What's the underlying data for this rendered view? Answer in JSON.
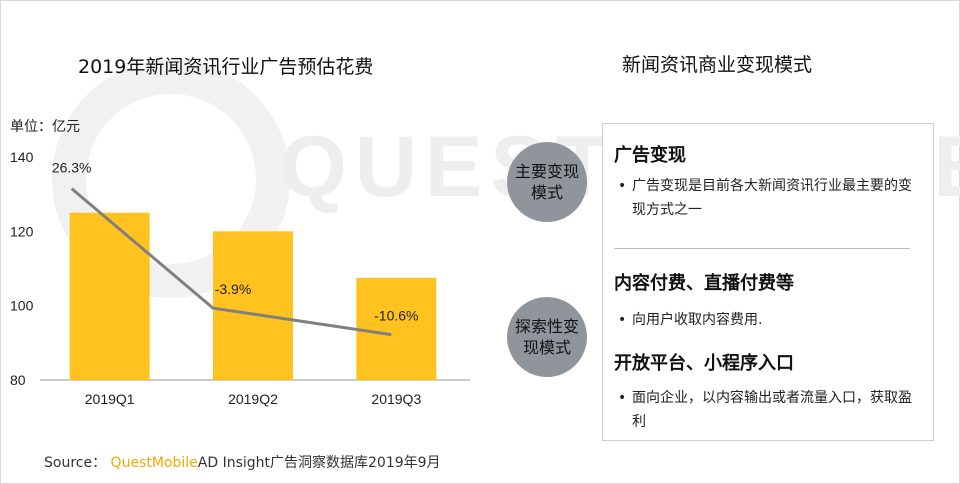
{
  "chart_data": {
    "type": "bar",
    "title": "2019年新闻资讯行业广告预估花费",
    "unit_label": "单位：亿元",
    "categories": [
      "2019Q1",
      "2019Q2",
      "2019Q3"
    ],
    "values": [
      125,
      120,
      107.5
    ],
    "bar_color": "#ffc21f",
    "ylim": [
      80,
      140
    ],
    "yticks": [
      80,
      100,
      120,
      140
    ],
    "growth_line": {
      "color": "#808080",
      "values": [
        26.3,
        -3.9,
        -10.6
      ],
      "labels": [
        "26.3%",
        "-3.9%",
        "-10.6%"
      ]
    },
    "grid": false
  },
  "right": {
    "title": "新闻资讯商业变现模式",
    "circle_1": "主要变现模式",
    "circle_2": "探索性变现模式",
    "sections": [
      {
        "title": "广告变现",
        "bullet": "广告变现是目前各大新闻资讯行业最主要的变现方式之一"
      },
      {
        "title": "内容付费、直播付费等",
        "bullet": "向用户收取内容费用."
      },
      {
        "title": "开放平台、小程序入口",
        "bullet": "面向企业，以内容输出或者流量入口，获取盈利"
      }
    ]
  },
  "source": {
    "prefix": "Source：",
    "brand": "QuestMobile",
    "rest": "AD Insight广告洞察数据库2019年9月"
  },
  "watermark": "QUESTMOBILE"
}
